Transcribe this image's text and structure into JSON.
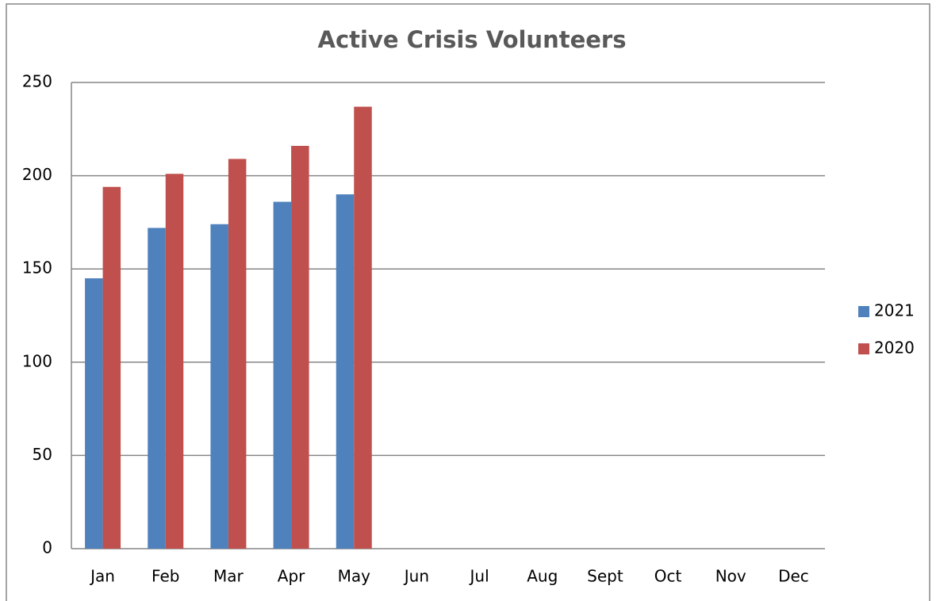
{
  "chart_data": {
    "type": "bar",
    "title": "Active Crisis Volunteers",
    "categories": [
      "Jan",
      "Feb",
      "Mar",
      "Apr",
      "May",
      "Jun",
      "Jul",
      "Aug",
      "Sept",
      "Oct",
      "Nov",
      "Dec"
    ],
    "series": [
      {
        "name": "2021",
        "color": "#4f81bd",
        "values": [
          145,
          172,
          174,
          186,
          190,
          null,
          null,
          null,
          null,
          null,
          null,
          null
        ]
      },
      {
        "name": "2020",
        "color": "#c0504d",
        "values": [
          194,
          201,
          209,
          216,
          237,
          null,
          null,
          null,
          null,
          null,
          null,
          null
        ]
      }
    ],
    "ylim": [
      0,
      250
    ],
    "yticks": [
      0,
      50,
      100,
      150,
      200,
      250
    ],
    "grid": true,
    "legend": "right"
  }
}
